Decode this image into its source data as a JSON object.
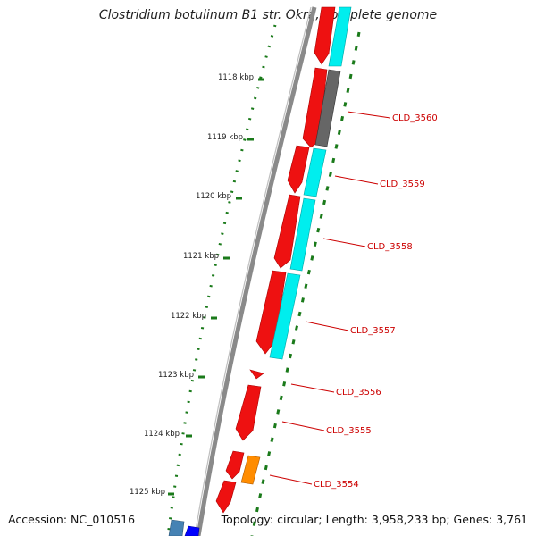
{
  "title": "Clostridium botulinum B1 str. Okra, complete genome",
  "footer": {
    "accession": "Accession: NC_010516",
    "summary": "Topology: circular; Length: 3,958,233 bp; Genes: 3,761"
  },
  "ticks": [
    "1118 kbp",
    "1119 kbp",
    "1120 kbp",
    "1121 kbp",
    "1122 kbp",
    "1123 kbp",
    "1124 kbp",
    "1125 kbp"
  ],
  "gene_labels": [
    "CLD_3560",
    "CLD_3559",
    "CLD_3558",
    "CLD_3557",
    "CLD_3556",
    "CLD_3555",
    "CLD_3554"
  ],
  "colors": {
    "backbone": "#7a7a7a",
    "cds": "#ee0000",
    "cog_cyan": "#00f0f0",
    "cog_gray": "#666666",
    "cog_orange": "#ff8c00",
    "cog_steel": "#4682b4",
    "cog_blue": "#0000ff",
    "ruler": "#1a7a1a",
    "label": "#cc0000"
  }
}
